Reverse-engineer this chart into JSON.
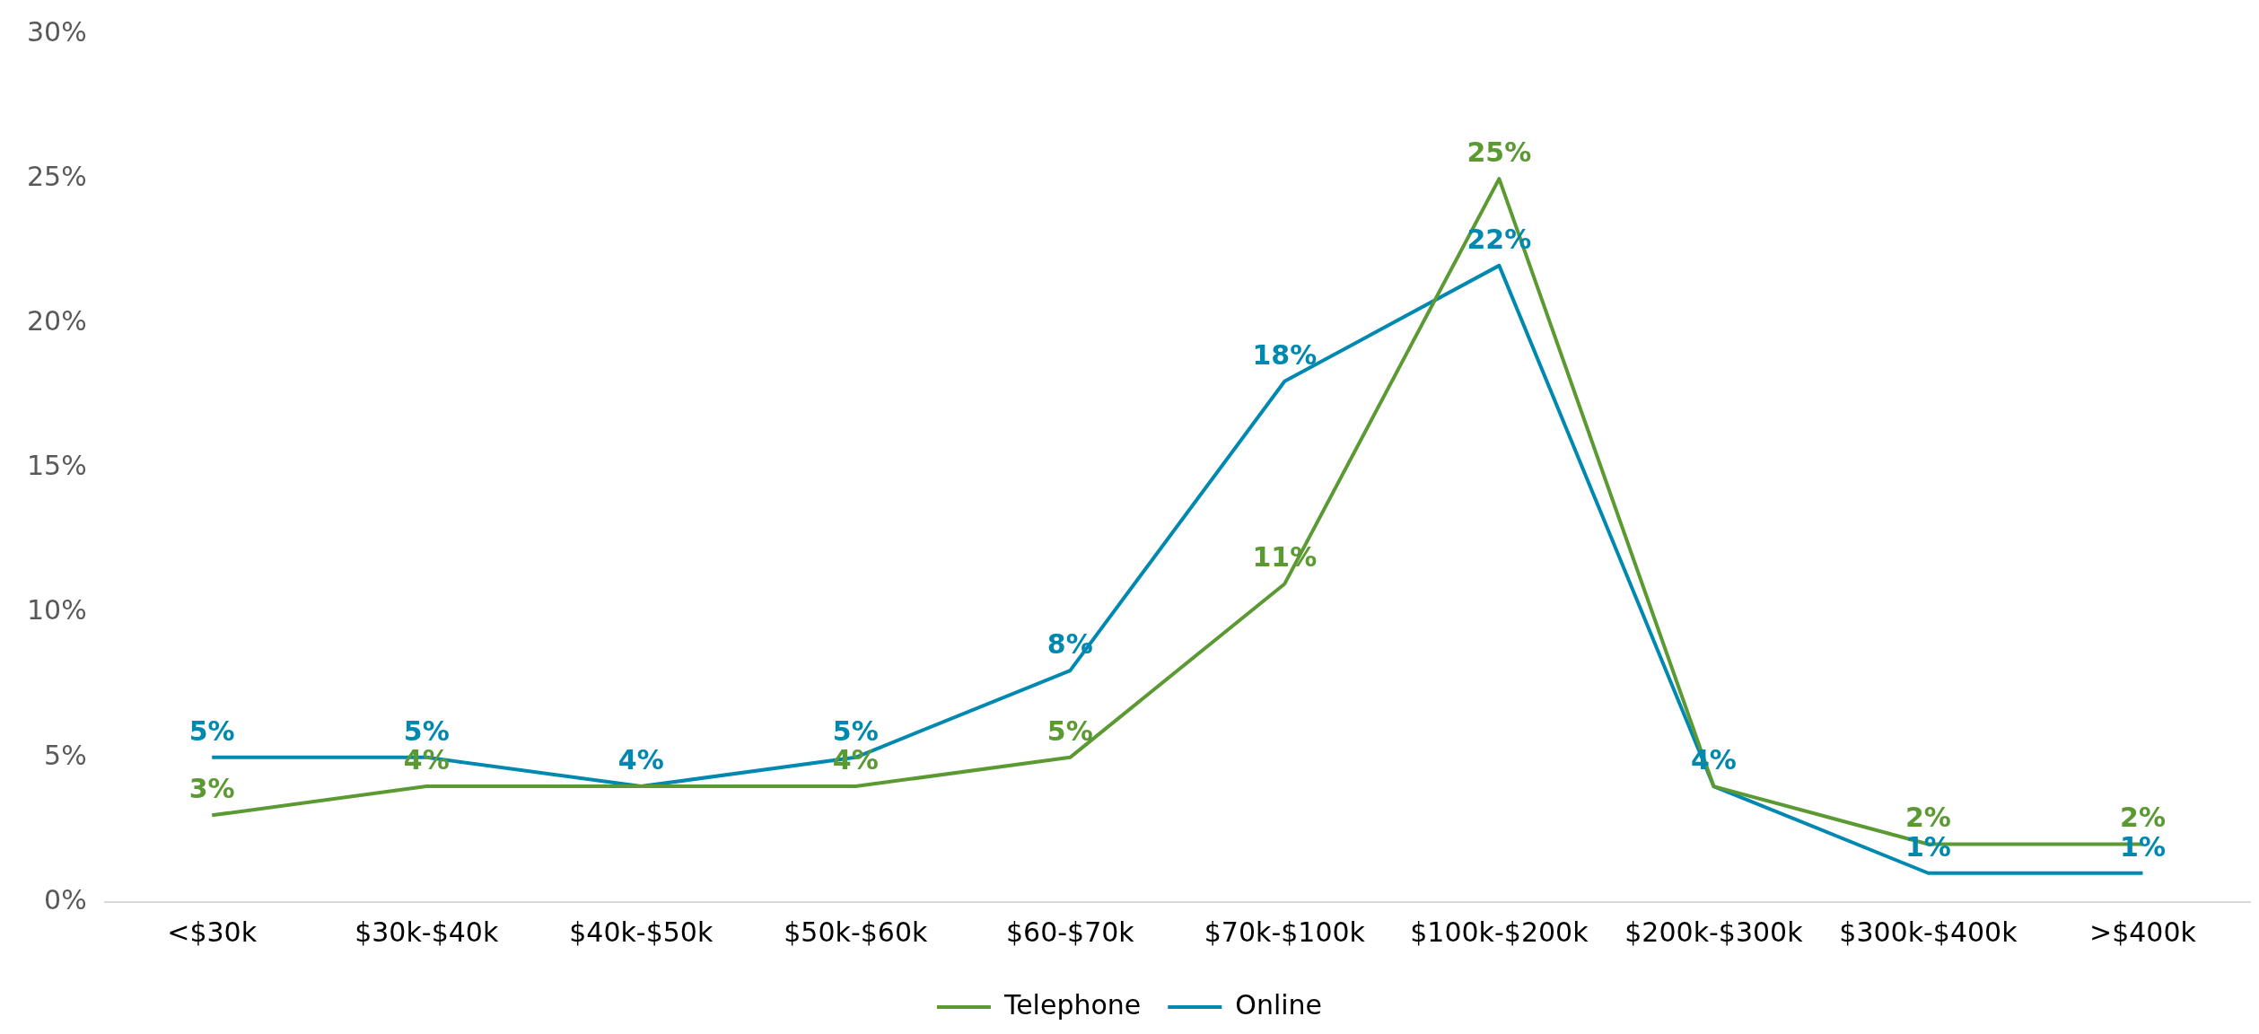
{
  "chart_data": {
    "type": "line",
    "categories": [
      "<$30k",
      "$30k-$40k",
      "$40k-$50k",
      "$50k-$60k",
      "$60-$70k",
      "$70k-$100k",
      "$100k-$200k",
      "$200k-$300k",
      "$300k-$400k",
      ">$400k"
    ],
    "series": [
      {
        "name": "Telephone",
        "color": "#5b9a32",
        "values": [
          3,
          4,
          4,
          4,
          5,
          11,
          25,
          4,
          2,
          2
        ],
        "value_labels": [
          "3%",
          "4%",
          null,
          "4%",
          "5%",
          "11%",
          "25%",
          null,
          "2%",
          "2%"
        ]
      },
      {
        "name": "Online",
        "color": "#0089b0",
        "values": [
          5,
          5,
          4,
          5,
          8,
          18,
          22,
          4,
          1,
          1
        ],
        "value_labels": [
          "5%",
          "5%",
          "4%",
          "5%",
          "8%",
          "18%",
          "22%",
          "4%",
          "1%",
          "1%"
        ]
      }
    ],
    "ylim": [
      0,
      30
    ],
    "yticks": [
      {
        "value": 0,
        "label": "0%"
      },
      {
        "value": 5,
        "label": "5%"
      },
      {
        "value": 10,
        "label": "10%"
      },
      {
        "value": 15,
        "label": "15%"
      },
      {
        "value": 20,
        "label": "20%"
      },
      {
        "value": 25,
        "label": "25%"
      },
      {
        "value": 30,
        "label": "30%"
      }
    ],
    "grid": false,
    "legend": "bottom",
    "marker": "none",
    "line_style": "solid"
  }
}
